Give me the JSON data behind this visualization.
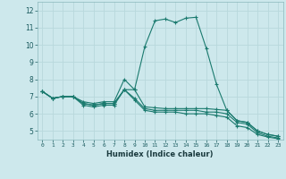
{
  "xlabel": "Humidex (Indice chaleur)",
  "ylabel": "",
  "background_color": "#cde8ec",
  "grid_color": "#b8d8dc",
  "line_color": "#1a7a6e",
  "xlim": [
    -0.5,
    23.5
  ],
  "ylim": [
    4.5,
    12.5
  ],
  "xticks": [
    0,
    1,
    2,
    3,
    4,
    5,
    6,
    7,
    8,
    9,
    10,
    11,
    12,
    13,
    14,
    15,
    16,
    17,
    18,
    19,
    20,
    21,
    22,
    23
  ],
  "yticks": [
    5,
    6,
    7,
    8,
    9,
    10,
    11,
    12
  ],
  "lines": [
    {
      "x": [
        0,
        1,
        2,
        3,
        4,
        5,
        6,
        7,
        8,
        9,
        10,
        11,
        12,
        13,
        14,
        15,
        16,
        17,
        18,
        19,
        20,
        21,
        22,
        23
      ],
      "y": [
        7.3,
        6.9,
        7.0,
        7.0,
        6.7,
        6.6,
        6.7,
        6.7,
        8.0,
        7.4,
        9.9,
        11.4,
        11.5,
        11.3,
        11.55,
        11.6,
        9.8,
        7.7,
        6.2,
        5.6,
        5.5,
        5.0,
        4.8,
        4.7
      ]
    },
    {
      "x": [
        0,
        1,
        2,
        3,
        4,
        5,
        6,
        7,
        8,
        9,
        10,
        11,
        12,
        13,
        14,
        15,
        16,
        17,
        18,
        19,
        20,
        21,
        22,
        23
      ],
      "y": [
        7.3,
        6.9,
        7.0,
        7.0,
        6.6,
        6.5,
        6.6,
        6.6,
        7.4,
        7.4,
        6.4,
        6.35,
        6.3,
        6.3,
        6.3,
        6.3,
        6.3,
        6.25,
        6.2,
        5.6,
        5.5,
        5.0,
        4.8,
        4.7
      ]
    },
    {
      "x": [
        0,
        1,
        2,
        3,
        4,
        5,
        6,
        7,
        8,
        9,
        10,
        11,
        12,
        13,
        14,
        15,
        16,
        17,
        18,
        19,
        20,
        21,
        22,
        23
      ],
      "y": [
        7.3,
        6.9,
        7.0,
        7.0,
        6.6,
        6.5,
        6.6,
        6.6,
        7.4,
        6.9,
        6.3,
        6.2,
        6.2,
        6.2,
        6.2,
        6.2,
        6.1,
        6.1,
        6.0,
        5.5,
        5.4,
        4.9,
        4.7,
        4.6
      ]
    },
    {
      "x": [
        0,
        1,
        2,
        3,
        4,
        5,
        6,
        7,
        8,
        9,
        10,
        11,
        12,
        13,
        14,
        15,
        16,
        17,
        18,
        19,
        20,
        21,
        22,
        23
      ],
      "y": [
        7.3,
        6.9,
        7.0,
        7.0,
        6.5,
        6.4,
        6.5,
        6.5,
        7.4,
        6.8,
        6.2,
        6.1,
        6.1,
        6.1,
        6.0,
        6.0,
        6.0,
        5.9,
        5.8,
        5.3,
        5.2,
        4.8,
        4.65,
        4.55
      ]
    }
  ]
}
